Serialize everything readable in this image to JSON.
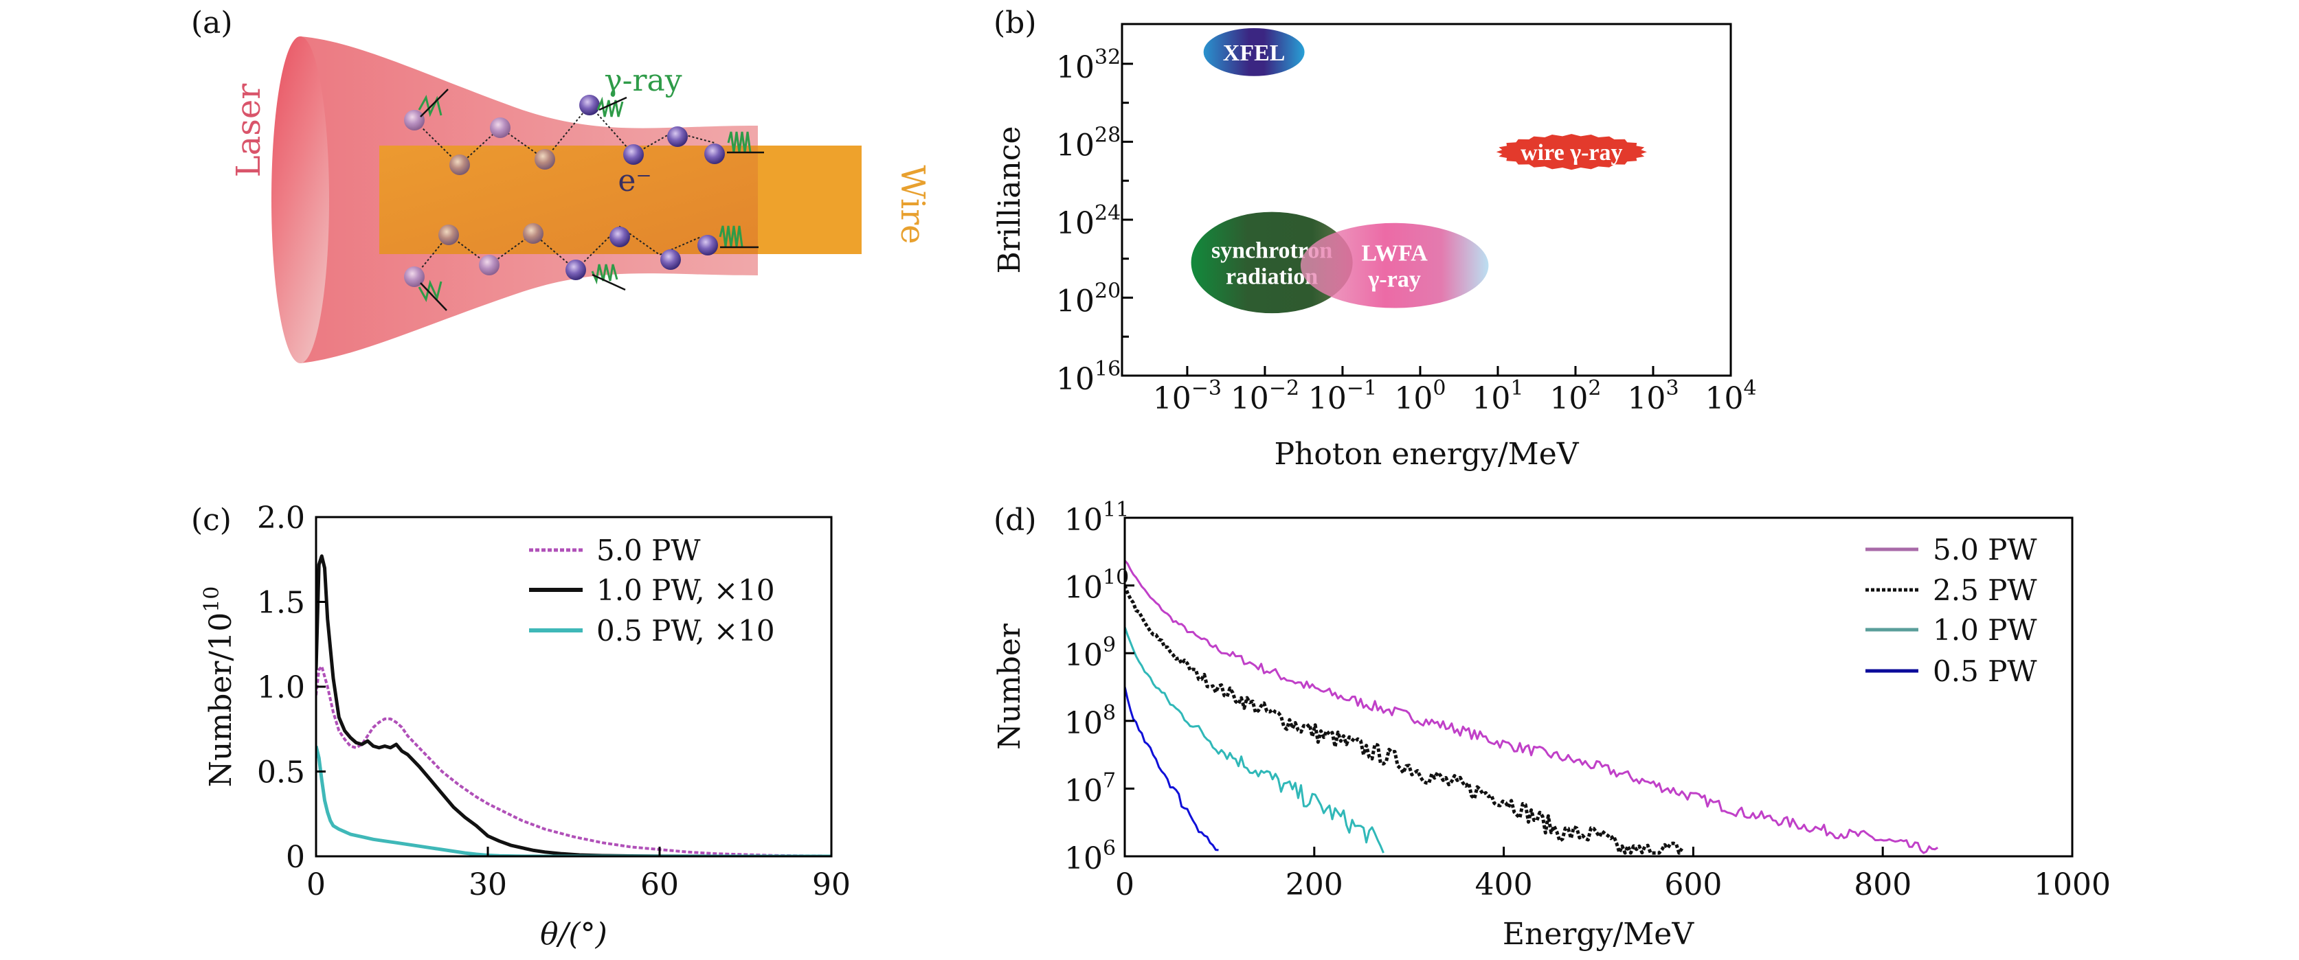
{
  "figure": {
    "panels": [
      "(a)",
      "(b)",
      "(c)",
      "(d)"
    ]
  },
  "schematic": {
    "laser_label": "Laser",
    "wire_label": "Wire",
    "gamma_label": "γ-ray",
    "electron_label": "e⁻",
    "colors": {
      "laser": "#ec6f7d",
      "laser_light": "#f3b3b6",
      "wire": "#eea22c",
      "wire_overlap": "#e58b2d",
      "gamma": "#2e9b48",
      "electron": "#6a58a8",
      "laser_text": "#d9546a",
      "wire_text": "#e8a02e"
    }
  },
  "chart_data": [
    {
      "id": "b",
      "type": "scatter",
      "title": "",
      "xlabel": "Photon energy/MeV",
      "ylabel": "Brilliance",
      "xscale": "log",
      "yscale": "log",
      "xlim_exp": [
        -3.84,
        4
      ],
      "ylim_exp": [
        16,
        34.04
      ],
      "xticks_exp": [
        -3,
        -2,
        -1,
        0,
        1,
        2,
        3,
        4
      ],
      "xtick_labels": [
        "10",
        "10",
        "10",
        "10",
        "10",
        "10",
        "10",
        "10"
      ],
      "xtick_sups": [
        "−3",
        "−2",
        "−1",
        "0",
        "1",
        "2",
        "3",
        "4"
      ],
      "yticks_exp": [
        16,
        20,
        24,
        28,
        32
      ],
      "yminor_exp": [
        18,
        22,
        26,
        30
      ],
      "ytick_labels": [
        "10",
        "10",
        "10",
        "10",
        "10"
      ],
      "ytick_sups": [
        "16",
        "20",
        "24",
        "28",
        "32"
      ],
      "regions": [
        {
          "name": "XFEL",
          "lines": [
            "XFEL"
          ],
          "center_exp": [
            -2.14,
            32.6
          ],
          "span_exp": [
            0.65,
            1.23
          ],
          "colors": [
            "#2b8ec6",
            "#3b2782"
          ]
        },
        {
          "name": "synchrotron radiation",
          "lines": [
            "synchrotron",
            "radiation"
          ],
          "center_exp": [
            -1.91,
            21.8
          ],
          "span_exp": [
            1.04,
            2.6
          ],
          "colors": [
            "#148a3a",
            "#2f5a2f"
          ]
        },
        {
          "name": "LWFA γ-ray",
          "lines": [
            "LWFA",
            "γ-ray"
          ],
          "center_exp": [
            -0.33,
            21.65
          ],
          "span_exp": [
            1.21,
            2.18
          ],
          "colors": [
            "#e85a9a",
            "#b8dcee"
          ]
        },
        {
          "name": "wire γ-ray",
          "lines": [
            "wire γ-ray"
          ],
          "center_exp": [
            1.95,
            27.48
          ],
          "span_exp": [
            0.97,
            0.92
          ],
          "colors": [
            "#e33a2c",
            "#e33a2c"
          ]
        }
      ]
    },
    {
      "id": "c",
      "type": "line",
      "title": "",
      "xlabel": "θ/(°)",
      "ylabel": "Number/10",
      "ylabel_sup": "10",
      "xlim": [
        0,
        90
      ],
      "ylim": [
        0,
        2.0
      ],
      "xticks": [
        0,
        30,
        60,
        90
      ],
      "xtick_labels": [
        "0",
        "30",
        "60",
        "90"
      ],
      "yticks": [
        0,
        0.5,
        1.0,
        1.5,
        2.0
      ],
      "ytick_labels": [
        "0",
        "0.5",
        "1.0",
        "1.5",
        "2.0"
      ],
      "legend": "top-right",
      "series": [
        {
          "name": "5.0 PW",
          "color": "#b050b8",
          "dash": "dotted",
          "x": [
            0,
            0.5,
            1,
            2,
            3,
            4,
            5,
            6,
            7,
            8,
            9,
            10,
            11,
            12,
            13,
            14,
            15,
            16,
            18,
            20,
            22,
            25,
            28,
            30,
            33,
            36,
            40,
            45,
            50,
            55,
            60,
            65,
            70,
            75,
            80,
            85,
            90
          ],
          "y": [
            0.95,
            1.1,
            1.12,
            1.0,
            0.85,
            0.74,
            0.69,
            0.65,
            0.64,
            0.66,
            0.71,
            0.76,
            0.79,
            0.81,
            0.81,
            0.79,
            0.76,
            0.71,
            0.64,
            0.57,
            0.5,
            0.42,
            0.35,
            0.31,
            0.26,
            0.21,
            0.16,
            0.115,
            0.08,
            0.055,
            0.04,
            0.025,
            0.015,
            0.01,
            0.005,
            0.003,
            0.002
          ]
        },
        {
          "name": "1.0 PW, ×10",
          "color": "#111111",
          "dash": "solid",
          "x": [
            0,
            0.5,
            1,
            1.5,
            2,
            3,
            4,
            5,
            6,
            7,
            8,
            9,
            10,
            11,
            12,
            13,
            14,
            15,
            16,
            18,
            20,
            22,
            24,
            26,
            28,
            30,
            32,
            34,
            36,
            38,
            40,
            43,
            46,
            50,
            55,
            60,
            70,
            80,
            90
          ],
          "y": [
            1.1,
            1.72,
            1.77,
            1.7,
            1.4,
            1.05,
            0.82,
            0.74,
            0.7,
            0.67,
            0.66,
            0.68,
            0.65,
            0.64,
            0.65,
            0.64,
            0.66,
            0.62,
            0.6,
            0.53,
            0.45,
            0.37,
            0.29,
            0.23,
            0.18,
            0.12,
            0.09,
            0.065,
            0.05,
            0.035,
            0.025,
            0.015,
            0.008,
            0.004,
            0.002,
            0.001,
            0,
            0,
            0
          ]
        },
        {
          "name": "0.5 PW, ×10",
          "color": "#3fb8b8",
          "dash": "solid",
          "x": [
            0,
            0.5,
            1,
            1.5,
            2,
            2.5,
            3,
            4,
            5,
            6,
            8,
            10,
            12,
            14,
            16,
            18,
            20,
            22,
            24,
            26,
            28,
            30,
            32,
            35,
            40,
            90
          ],
          "y": [
            0.65,
            0.58,
            0.45,
            0.33,
            0.26,
            0.21,
            0.18,
            0.16,
            0.145,
            0.13,
            0.115,
            0.1,
            0.09,
            0.08,
            0.07,
            0.06,
            0.05,
            0.04,
            0.03,
            0.02,
            0.012,
            0.006,
            0.003,
            0.001,
            0,
            0
          ]
        }
      ]
    },
    {
      "id": "d",
      "type": "line",
      "title": "",
      "xlabel": "Energy/MeV",
      "ylabel": "Number",
      "yscale": "log",
      "xlim": [
        0,
        1000
      ],
      "ylim_exp": [
        6,
        11
      ],
      "xticks": [
        0,
        200,
        400,
        600,
        800,
        1000
      ],
      "xtick_labels": [
        "0",
        "200",
        "400",
        "600",
        "800",
        "1000"
      ],
      "yticks_exp": [
        6,
        7,
        8,
        9,
        10,
        11
      ],
      "ytick_labels": [
        "10",
        "10",
        "10",
        "10",
        "10",
        "10"
      ],
      "ytick_sups": [
        "6",
        "7",
        "8",
        "9",
        "10",
        "11"
      ],
      "legend": "top-right",
      "series": [
        {
          "name": "5.0 PW",
          "color": "#c040c8",
          "legend_color": "#a86aa8",
          "dash": "solid",
          "noise": 0.16,
          "x": [
            0,
            10,
            25,
            50,
            75,
            100,
            150,
            200,
            250,
            300,
            350,
            400,
            450,
            500,
            550,
            600,
            650,
            700,
            750,
            780,
            860
          ],
          "log10y": [
            10.38,
            10.15,
            9.85,
            9.5,
            9.25,
            9.05,
            8.75,
            8.47,
            8.27,
            8.07,
            7.88,
            7.66,
            7.5,
            7.32,
            7.1,
            6.88,
            6.65,
            6.5,
            6.35,
            6.3,
            6.05
          ]
        },
        {
          "name": "2.5 PW",
          "color": "#111111",
          "legend_color": "#111111",
          "dash": "dotted",
          "noise": 0.28,
          "x": [
            0,
            10,
            25,
            50,
            75,
            100,
            150,
            200,
            250,
            280,
            320,
            350,
            400,
            430,
            460,
            500,
            530,
            590
          ],
          "log10y": [
            9.99,
            9.7,
            9.35,
            9.0,
            8.7,
            8.47,
            8.13,
            7.83,
            7.6,
            7.45,
            7.2,
            7.05,
            6.85,
            6.6,
            6.35,
            6.3,
            6.05,
            6.1
          ]
        },
        {
          "name": "1.0 PW",
          "color": "#30b8b8",
          "legend_color": "#5a9e9a",
          "dash": "solid",
          "noise": 0.3,
          "x": [
            0,
            10,
            25,
            50,
            75,
            100,
            125,
            150,
            175,
            200,
            230,
            260,
            275
          ],
          "log10y": [
            9.39,
            9.0,
            8.65,
            8.23,
            7.9,
            7.59,
            7.38,
            7.19,
            6.98,
            6.8,
            6.55,
            6.3,
            6.05
          ]
        },
        {
          "name": "0.5 PW",
          "color": "#1010d8",
          "legend_color": "#0a0a9a",
          "dash": "solid",
          "noise": 0.35,
          "x": [
            0,
            5,
            15,
            30,
            45,
            60,
            75,
            90,
            100
          ],
          "log10y": [
            8.5,
            8.2,
            7.85,
            7.49,
            7.15,
            6.8,
            6.5,
            6.2,
            6.05
          ]
        }
      ]
    }
  ]
}
